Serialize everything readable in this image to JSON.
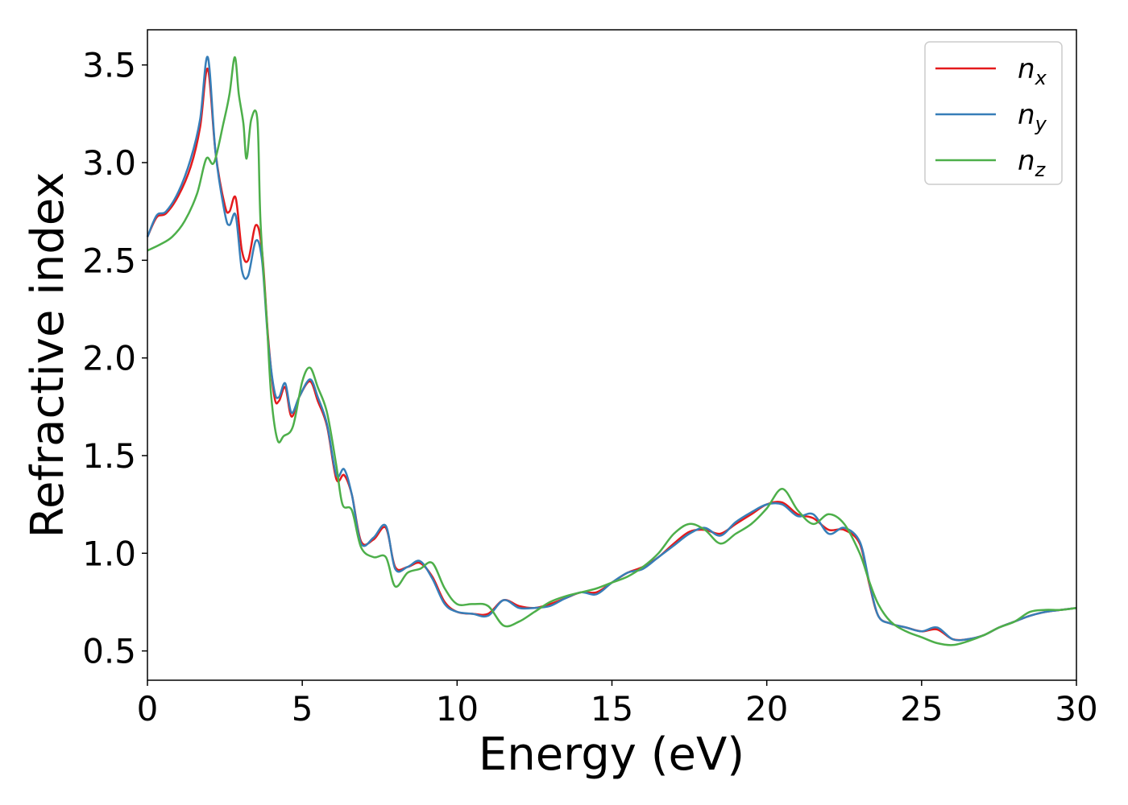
{
  "chart_data": {
    "type": "line",
    "title": "",
    "xlabel": "Energy (eV)",
    "ylabel": "Refractive index",
    "xlim": [
      0,
      30
    ],
    "ylim": [
      0.35,
      3.68
    ],
    "xticks": [
      0,
      5,
      10,
      15,
      20,
      25,
      30
    ],
    "xtick_labels": [
      "0",
      "5",
      "10",
      "15",
      "20",
      "25",
      "30"
    ],
    "yticks": [
      0.5,
      1.0,
      1.5,
      2.0,
      2.5,
      3.0,
      3.5
    ],
    "ytick_labels": [
      "0.5",
      "1.0",
      "1.5",
      "2.0",
      "2.5",
      "3.0",
      "3.5"
    ],
    "grid": false,
    "legend_position": "top-right",
    "series": [
      {
        "name": "n_x",
        "label_base": "n",
        "label_sub": "x",
        "color": "#e41a1c",
        "x": [
          0,
          0.3,
          0.6,
          1.0,
          1.4,
          1.7,
          1.95,
          2.2,
          2.5,
          2.65,
          2.85,
          3.05,
          3.25,
          3.5,
          3.7,
          3.9,
          4.1,
          4.25,
          4.45,
          4.65,
          4.9,
          5.25,
          5.5,
          5.8,
          6.1,
          6.35,
          6.6,
          6.9,
          7.3,
          7.7,
          8.0,
          8.4,
          8.8,
          9.2,
          9.6,
          10.0,
          10.5,
          11.0,
          11.5,
          12.0,
          12.5,
          13.0,
          13.5,
          14.0,
          14.5,
          15.0,
          15.5,
          16.0,
          16.5,
          17.0,
          17.5,
          18.0,
          18.5,
          19.0,
          19.5,
          20.0,
          20.5,
          21.0,
          21.5,
          22.0,
          22.5,
          23.0,
          23.3,
          23.6,
          24.0,
          24.5,
          25.0,
          25.5,
          26.0,
          26.5,
          27.0,
          27.5,
          28.0,
          28.5,
          29.0,
          29.5,
          30.0
        ],
        "y": [
          2.62,
          2.72,
          2.74,
          2.83,
          2.98,
          3.18,
          3.48,
          3.05,
          2.78,
          2.75,
          2.82,
          2.55,
          2.5,
          2.68,
          2.55,
          2.1,
          1.8,
          1.78,
          1.85,
          1.7,
          1.8,
          1.88,
          1.78,
          1.65,
          1.38,
          1.4,
          1.3,
          1.06,
          1.07,
          1.13,
          0.93,
          0.93,
          0.95,
          0.88,
          0.75,
          0.7,
          0.69,
          0.69,
          0.76,
          0.73,
          0.72,
          0.74,
          0.77,
          0.8,
          0.8,
          0.85,
          0.9,
          0.93,
          0.98,
          1.05,
          1.11,
          1.12,
          1.1,
          1.15,
          1.2,
          1.25,
          1.26,
          1.2,
          1.18,
          1.12,
          1.12,
          1.05,
          0.85,
          0.68,
          0.64,
          0.62,
          0.6,
          0.61,
          0.56,
          0.56,
          0.58,
          0.62,
          0.65,
          0.68,
          0.7,
          0.71,
          0.72
        ]
      },
      {
        "name": "n_y",
        "label_base": "n",
        "label_sub": "y",
        "color": "#377eb8",
        "x": [
          0,
          0.3,
          0.6,
          1.0,
          1.4,
          1.7,
          1.95,
          2.2,
          2.5,
          2.65,
          2.85,
          3.05,
          3.25,
          3.5,
          3.7,
          3.9,
          4.1,
          4.25,
          4.45,
          4.65,
          4.9,
          5.25,
          5.5,
          5.8,
          6.1,
          6.35,
          6.6,
          6.9,
          7.3,
          7.7,
          8.0,
          8.4,
          8.8,
          9.2,
          9.6,
          10.0,
          10.5,
          11.0,
          11.5,
          12.0,
          12.5,
          13.0,
          13.5,
          14.0,
          14.5,
          15.0,
          15.5,
          16.0,
          16.5,
          17.0,
          17.5,
          18.0,
          18.5,
          19.0,
          19.5,
          20.0,
          20.5,
          21.0,
          21.5,
          22.0,
          22.5,
          23.0,
          23.3,
          23.6,
          24.0,
          24.5,
          25.0,
          25.5,
          26.0,
          26.5,
          27.0,
          27.5,
          28.0,
          28.5,
          29.0,
          29.5,
          30.0
        ],
        "y": [
          2.62,
          2.73,
          2.75,
          2.85,
          3.02,
          3.22,
          3.54,
          3.05,
          2.74,
          2.68,
          2.73,
          2.45,
          2.42,
          2.6,
          2.5,
          2.08,
          1.83,
          1.8,
          1.87,
          1.72,
          1.8,
          1.89,
          1.8,
          1.66,
          1.4,
          1.43,
          1.3,
          1.05,
          1.08,
          1.14,
          0.92,
          0.93,
          0.96,
          0.87,
          0.74,
          0.7,
          0.69,
          0.68,
          0.76,
          0.72,
          0.72,
          0.73,
          0.77,
          0.8,
          0.79,
          0.85,
          0.9,
          0.92,
          0.98,
          1.04,
          1.1,
          1.13,
          1.09,
          1.16,
          1.21,
          1.25,
          1.25,
          1.19,
          1.2,
          1.1,
          1.13,
          1.06,
          0.86,
          0.68,
          0.64,
          0.62,
          0.6,
          0.62,
          0.56,
          0.56,
          0.58,
          0.62,
          0.65,
          0.68,
          0.7,
          0.71,
          0.72
        ]
      },
      {
        "name": "n_z",
        "label_base": "n",
        "label_sub": "z",
        "color": "#4daf4a",
        "x": [
          0,
          0.4,
          0.8,
          1.2,
          1.6,
          1.9,
          2.15,
          2.45,
          2.65,
          2.82,
          2.95,
          3.1,
          3.2,
          3.35,
          3.55,
          3.65,
          3.85,
          4.0,
          4.2,
          4.4,
          4.7,
          5.0,
          5.25,
          5.5,
          5.8,
          6.1,
          6.3,
          6.6,
          6.9,
          7.3,
          7.7,
          8.0,
          8.4,
          8.8,
          9.2,
          9.6,
          10.0,
          10.5,
          11.0,
          11.5,
          12.0,
          12.5,
          13.0,
          13.5,
          14.0,
          14.5,
          15.0,
          15.5,
          16.0,
          16.5,
          17.0,
          17.5,
          18.0,
          18.5,
          19.0,
          19.5,
          20.0,
          20.5,
          21.0,
          21.5,
          22.0,
          22.5,
          23.0,
          23.3,
          23.6,
          24.0,
          24.5,
          25.0,
          25.5,
          26.0,
          26.5,
          27.0,
          27.5,
          28.0,
          28.5,
          29.0,
          29.5,
          30.0
        ],
        "y": [
          2.55,
          2.58,
          2.62,
          2.7,
          2.84,
          3.02,
          3.0,
          3.2,
          3.35,
          3.54,
          3.35,
          3.2,
          3.02,
          3.22,
          3.22,
          2.7,
          2.2,
          1.8,
          1.58,
          1.6,
          1.65,
          1.88,
          1.95,
          1.85,
          1.72,
          1.45,
          1.25,
          1.22,
          1.03,
          0.98,
          0.98,
          0.83,
          0.9,
          0.92,
          0.95,
          0.82,
          0.74,
          0.74,
          0.73,
          0.63,
          0.65,
          0.7,
          0.75,
          0.78,
          0.8,
          0.82,
          0.85,
          0.88,
          0.93,
          1.0,
          1.1,
          1.15,
          1.12,
          1.05,
          1.1,
          1.15,
          1.23,
          1.33,
          1.22,
          1.15,
          1.2,
          1.15,
          1.0,
          0.86,
          0.74,
          0.65,
          0.6,
          0.57,
          0.54,
          0.53,
          0.55,
          0.58,
          0.62,
          0.65,
          0.7,
          0.71,
          0.71,
          0.72
        ]
      }
    ]
  }
}
